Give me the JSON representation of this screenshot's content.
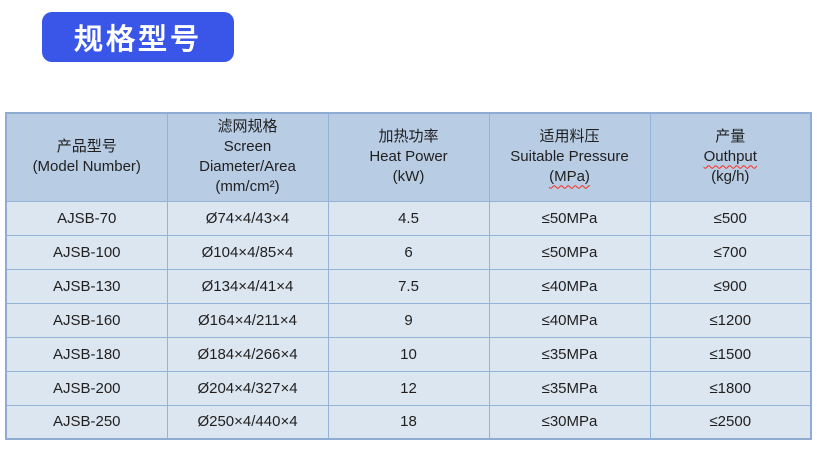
{
  "badge": {
    "label": "规格型号"
  },
  "colors": {
    "badge_blue": "#3a56e8",
    "header_bg": "#b8cce4",
    "row_bg": "#dce6f1",
    "border_blue": "#95b3d7",
    "misspell_red": "#ff2a1a",
    "text": "#1f1f1f"
  },
  "table": {
    "header": [
      {
        "lines": [
          "产品型号",
          "(Model Number)"
        ]
      },
      {
        "lines": [
          "滤网规格",
          "Screen",
          "Diameter/Area",
          "(mm/cm²)"
        ]
      },
      {
        "lines": [
          "加热功率",
          "Heat Power",
          "(kW)"
        ]
      },
      {
        "lines": [
          "适用料压",
          "Suitable Pressure",
          "(MPa)"
        ]
      },
      {
        "lines": [
          "产量",
          "Outhput",
          "(kg/h)"
        ]
      }
    ],
    "rows": [
      [
        "AJSB-70",
        "Ø74×4/43×4",
        "4.5",
        "≤50MPa",
        "≤500"
      ],
      [
        "AJSB-100",
        "Ø104×4/85×4",
        "6",
        "≤50MPa",
        "≤700"
      ],
      [
        "AJSB-130",
        "Ø134×4/41×4",
        "7.5",
        "≤40MPa",
        "≤900"
      ],
      [
        "AJSB-160",
        "Ø164×4/211×4",
        "9",
        "≤40MPa",
        "≤1200"
      ],
      [
        "AJSB-180",
        "Ø184×4/266×4",
        "10",
        "≤35MPa",
        "≤1500"
      ],
      [
        "AJSB-200",
        "Ø204×4/327×4",
        "12",
        "≤35MPa",
        "≤1800"
      ],
      [
        "AJSB-250",
        "Ø250×4/440×4",
        "18",
        "≤30MPa",
        "≤2500"
      ]
    ]
  }
}
